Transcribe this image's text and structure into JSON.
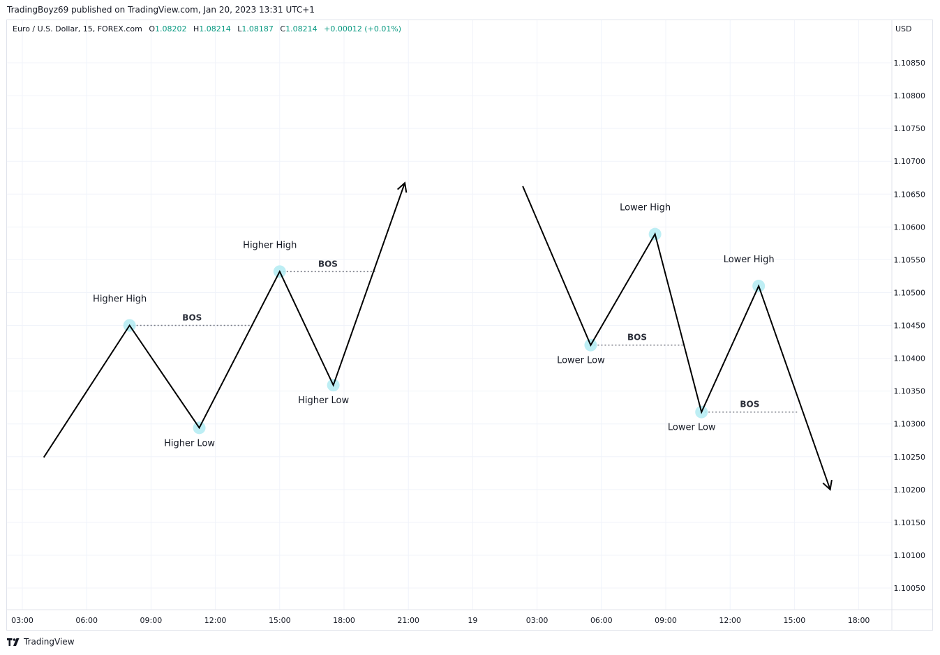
{
  "publisher_line": "TradingBoyz69 published on TradingView.com, Jan 20, 2023 13:31 UTC+1",
  "legend": {
    "symbol": "Euro / U.S. Dollar, 15, FOREX.com",
    "o_label": "O",
    "o_value": "1.08202",
    "h_label": "H",
    "h_value": "1.08214",
    "l_label": "L",
    "l_value": "1.08187",
    "c_label": "C",
    "c_value": "1.08214",
    "change": "+0.00012 (+0.01%)"
  },
  "currency": "USD",
  "footer": {
    "brand": "TradingView",
    "logo_icon": "tradingview-logo-icon"
  },
  "colors": {
    "line": "#000000",
    "pivot_marker": "#b2ebf2",
    "bos_line": "#787b86",
    "grid": "#f0f3fa",
    "up": "#089981"
  },
  "chart_data": {
    "type": "line",
    "x_axis_type": "time",
    "y_axis": {
      "position": "right",
      "ticks": [
        "1.10850",
        "1.10800",
        "1.10750",
        "1.10700",
        "1.10650",
        "1.10600",
        "1.10550",
        "1.10500",
        "1.10450",
        "1.10400",
        "1.10350",
        "1.10300",
        "1.10250",
        "1.10200",
        "1.10150",
        "1.10100",
        "1.10050"
      ]
    },
    "x_axis": {
      "ticks": [
        "03:00",
        "06:00",
        "09:00",
        "12:00",
        "15:00",
        "18:00",
        "21:00",
        "19",
        "03:00",
        "06:00",
        "09:00",
        "12:00",
        "15:00",
        "18:00"
      ]
    },
    "grid": true,
    "uptrend": {
      "points": [
        {
          "time": "18 04:00",
          "price": 1.10249
        },
        {
          "time": "18 08:00",
          "price": 1.1045
        },
        {
          "time": "18 11:15",
          "price": 1.10294
        },
        {
          "time": "18 15:00",
          "price": 1.10532
        },
        {
          "time": "18 17:30",
          "price": 1.10359
        },
        {
          "time": "18 20:50",
          "price": 1.10667
        }
      ],
      "arrow": "up"
    },
    "downtrend": {
      "points": [
        {
          "time": "19 02:20",
          "price": 1.10662
        },
        {
          "time": "19 05:30",
          "price": 1.1042
        },
        {
          "time": "19 08:30",
          "price": 1.10589
        },
        {
          "time": "19 10:40",
          "price": 1.10318
        },
        {
          "time": "19 13:20",
          "price": 1.1051
        },
        {
          "time": "19 16:40",
          "price": 1.102
        }
      ],
      "arrow": "down"
    },
    "pivots": [
      {
        "time": "18 08:00",
        "price": 1.1045,
        "label": "Higher High",
        "label_pos": "above"
      },
      {
        "time": "18 11:15",
        "price": 1.10294,
        "label": "Higher Low",
        "label_pos": "below"
      },
      {
        "time": "18 15:00",
        "price": 1.10532,
        "label": "Higher High",
        "label_pos": "above"
      },
      {
        "time": "18 17:30",
        "price": 1.10359,
        "label": "Higher Low",
        "label_pos": "below"
      },
      {
        "time": "19 05:30",
        "price": 1.1042,
        "label": "Lower Low",
        "label_pos": "below"
      },
      {
        "time": "19 08:30",
        "price": 1.10589,
        "label": "Lower High",
        "label_pos": "above"
      },
      {
        "time": "19 10:40",
        "price": 1.10318,
        "label": "Lower Low",
        "label_pos": "below"
      },
      {
        "time": "19 13:20",
        "price": 1.1051,
        "label": "Lower High",
        "label_pos": "above"
      }
    ],
    "bos": [
      {
        "label": "BOS",
        "price": 1.1045,
        "from": "18 08:00",
        "to": "18 13:50"
      },
      {
        "label": "BOS",
        "price": 1.10532,
        "from": "18 15:00",
        "to": "18 19:30"
      },
      {
        "label": "BOS",
        "price": 1.1042,
        "from": "19 05:30",
        "to": "19 09:50"
      },
      {
        "label": "BOS",
        "price": 1.10318,
        "from": "19 10:40",
        "to": "19 15:10"
      }
    ]
  }
}
